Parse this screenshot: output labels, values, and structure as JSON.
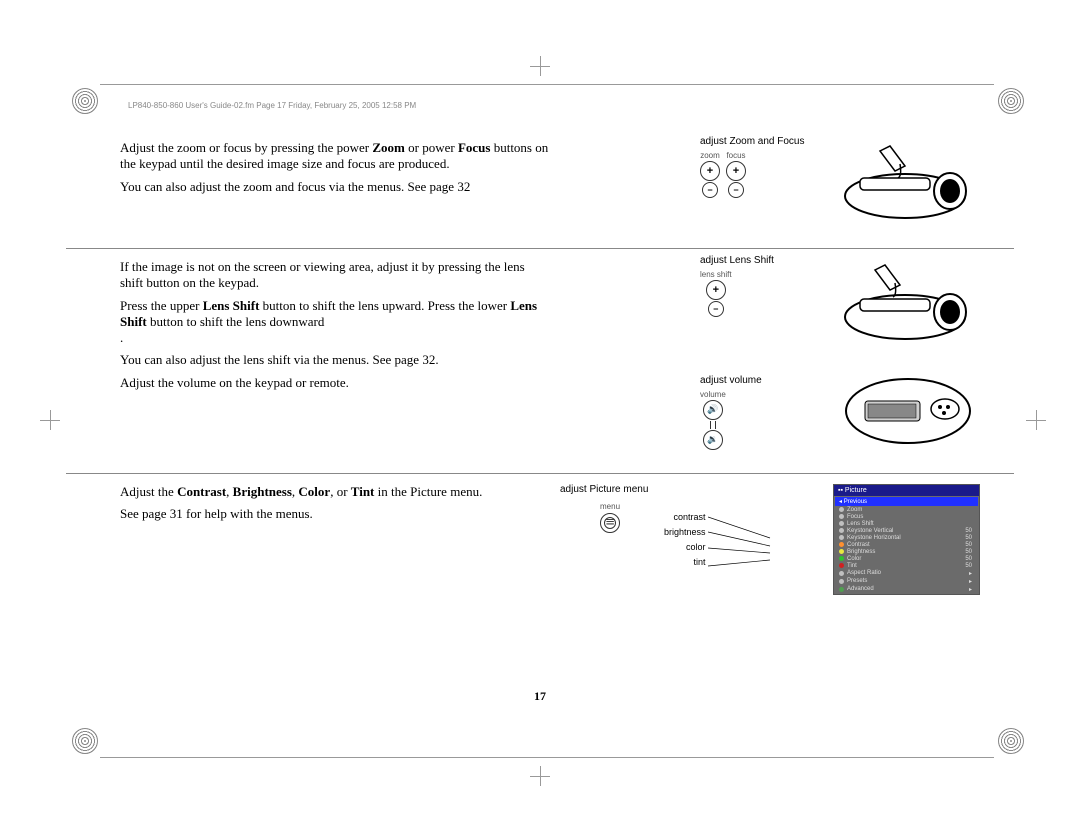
{
  "header": "LP840-850-860 User's Guide-02.fm  Page 17  Friday, February 25, 2005  12:58 PM",
  "pageNumber": "17",
  "section1": {
    "p1_a": "Adjust the zoom or focus by pressing the power ",
    "p1_b1": "Zoom",
    "p1_c": " or power ",
    "p1_b2": "Focus",
    "p1_d": " buttons on the keypad until the desired image size and focus are produced.",
    "p2": "You can also adjust the zoom and focus via the menus. See page 32",
    "illusLabel": "adjust Zoom and Focus",
    "zoomLabel": "zoom",
    "focusLabel": "focus"
  },
  "section2": {
    "p1": "If the image is not on the screen or viewing area, adjust it by pressing the lens shift button on the keypad.",
    "p2_a": "Press the upper ",
    "p2_b1": "Lens Shift",
    "p2_c": " button to shift the lens upward. Press the lower ",
    "p2_b2": "Lens Shift",
    "p2_d": " button to shift the lens downward",
    "p2_e": ".",
    "p3": "You can also adjust the lens shift via the menus. See page 32.",
    "illusLabel": "adjust Lens Shift",
    "shiftLabel": "lens shift"
  },
  "section3": {
    "p1": "Adjust the volume on the keypad or remote.",
    "illusLabel": "adjust volume",
    "volLabel": "volume"
  },
  "section4": {
    "p1_a": "Adjust the ",
    "p1_b1": "Contrast",
    "p1_s1": ", ",
    "p1_b2": "Brightness",
    "p1_s2": ", ",
    "p1_b3": "Color",
    "p1_s3": ", or ",
    "p1_b4": "Tint",
    "p1_c": " in the Picture menu.",
    "p2": "See page 31 for help with the menus.",
    "illusLabel": "adjust Picture menu",
    "menuLabel": "menu",
    "callouts": {
      "contrast": "contrast",
      "brightness": "brightness",
      "color": "color",
      "tint": "tint"
    }
  },
  "menu": {
    "title": "Picture",
    "highlight": "Previous",
    "items": [
      {
        "label": "Zoom",
        "val": "",
        "dot": "#c0c0c0"
      },
      {
        "label": "Focus",
        "val": "",
        "dot": "#c0c0c0"
      },
      {
        "label": "Lens Shift",
        "val": "",
        "dot": "#c0c0c0"
      },
      {
        "label": "Keystone Vertical",
        "val": "50",
        "dot": "#c0c0c0"
      },
      {
        "label": "Keystone Horizontal",
        "val": "50",
        "dot": "#c0c0c0"
      },
      {
        "label": "Contrast",
        "val": "50",
        "dot": "#ff9030"
      },
      {
        "label": "Brightness",
        "val": "50",
        "dot": "#e8e840"
      },
      {
        "label": "Color",
        "val": "50",
        "dot": "#30c030"
      },
      {
        "label": "Tint",
        "val": "50",
        "dot": "#d02020"
      },
      {
        "label": "Aspect Ratio",
        "val": "▸",
        "dot": "#c0c0c0"
      },
      {
        "label": "Presets",
        "val": "▸",
        "dot": "#c0c0c0"
      },
      {
        "label": "Advanced",
        "val": "▸",
        "dot": "#50a050"
      }
    ]
  }
}
